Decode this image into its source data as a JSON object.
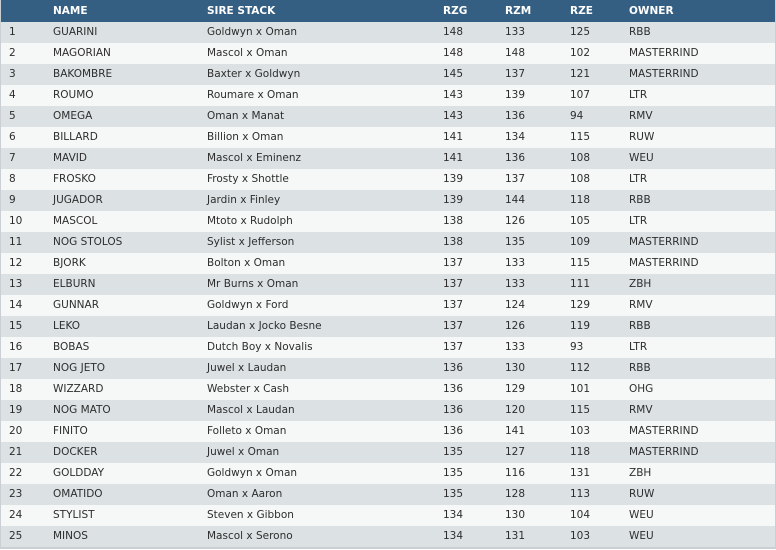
{
  "colors": {
    "header_bg": "#355f82",
    "row_odd": "#dce2e4",
    "row_even": "#f6f8f8"
  },
  "headers": [
    "",
    "NAME",
    "SIRE STACK",
    "RZG",
    "RZM",
    "RZE",
    "OWNER"
  ],
  "rows": [
    [
      "1",
      "GUARINI",
      "Goldwyn x Oman",
      "148",
      "133",
      "125",
      "RBB"
    ],
    [
      "2",
      "MAGORIAN",
      "Mascol x Oman",
      "148",
      "148",
      "102",
      "MASTERRIND"
    ],
    [
      "3",
      "BAKOMBRE",
      "Baxter x Goldwyn",
      "145",
      "137",
      "121",
      "MASTERRIND"
    ],
    [
      "4",
      "ROUMO",
      "Roumare x Oman",
      "143",
      "139",
      "107",
      "LTR"
    ],
    [
      "5",
      "OMEGA",
      "Oman x Manat",
      "143",
      "136",
      "94",
      "RMV"
    ],
    [
      "6",
      "BILLARD",
      "Billion x Oman",
      "141",
      "134",
      "115",
      "RUW"
    ],
    [
      "7",
      "MAVID",
      "Mascol x Eminenz",
      "141",
      "136",
      "108",
      "WEU"
    ],
    [
      "8",
      "FROSKO",
      "Frosty x Shottle",
      "139",
      "137",
      "108",
      "LTR"
    ],
    [
      "9",
      "JUGADOR",
      "Jardin x Finley",
      "139",
      "144",
      "118",
      "RBB"
    ],
    [
      "10",
      "MASCOL",
      "Mtoto x Rudolph",
      "138",
      "126",
      "105",
      "LTR"
    ],
    [
      "11",
      "NOG STOLOS",
      "Sylist x Jefferson",
      "138",
      "135",
      "109",
      "MASTERRIND"
    ],
    [
      "12",
      "BJORK",
      "Bolton x Oman",
      "137",
      "133",
      "115",
      "MASTERRIND"
    ],
    [
      "13",
      "ELBURN",
      "Mr Burns x Oman",
      "137",
      "133",
      "111",
      "ZBH"
    ],
    [
      "14",
      "GUNNAR",
      "Goldwyn x Ford",
      "137",
      "124",
      "129",
      "RMV"
    ],
    [
      "15",
      "LEKO",
      "Laudan x Jocko Besne",
      "137",
      "126",
      "119",
      "RBB"
    ],
    [
      "16",
      "BOBAS",
      "Dutch Boy x Novalis",
      "137",
      "133",
      "93",
      "LTR"
    ],
    [
      "17",
      "NOG JETO",
      "Juwel x Laudan",
      "136",
      "130",
      "112",
      "RBB"
    ],
    [
      "18",
      "WIZZARD",
      "Webster x Cash",
      "136",
      "129",
      "101",
      "OHG"
    ],
    [
      "19",
      "NOG MATO",
      "Mascol x Laudan",
      "136",
      "120",
      "115",
      "RMV"
    ],
    [
      "20",
      "FINITO",
      "Folleto x Oman",
      "136",
      "141",
      "103",
      "MASTERRIND"
    ],
    [
      "21",
      "DOCKER",
      "Juwel x Oman",
      "135",
      "127",
      "118",
      "MASTERRIND"
    ],
    [
      "22",
      "GOLDDAY",
      "Goldwyn x Oman",
      "135",
      "116",
      "131",
      "ZBH"
    ],
    [
      "23",
      "OMATIDO",
      "Oman x Aaron",
      "135",
      "128",
      "113",
      "RUW"
    ],
    [
      "24",
      "STYLIST",
      "Steven x Gibbon",
      "134",
      "130",
      "104",
      "WEU"
    ],
    [
      "25",
      "MINOS",
      "Mascol x Serono",
      "134",
      "131",
      "103",
      "WEU"
    ]
  ]
}
